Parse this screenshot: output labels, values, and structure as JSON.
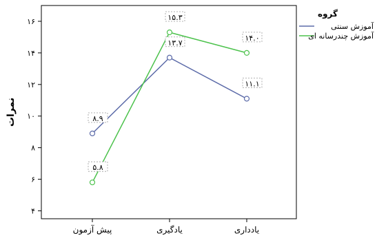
{
  "chart_data": {
    "type": "line",
    "categories": [
      "پیش آزمون",
      "یادگیری",
      "یادداری"
    ],
    "series": [
      {
        "name": "آموزش سنتی",
        "color": "#5b6aa8",
        "values": [
          8.9,
          13.7,
          11.1
        ],
        "labels": [
          "۸.۹",
          "۱۳.۷",
          "۱۱.۱"
        ]
      },
      {
        "name": "آموزش چندرسانه ای",
        "color": "#4cc24c",
        "values": [
          5.8,
          15.3,
          14.0
        ],
        "labels": [
          "۵.۸",
          "۱۵.۳",
          "۱۴.۰"
        ]
      }
    ],
    "ylabel": "نمرات",
    "ylim": [
      3.5,
      17
    ],
    "yticks": [
      4,
      6,
      8,
      10,
      12,
      14,
      16
    ],
    "ytick_labels": [
      "۴",
      "۶",
      "۸",
      "۱۰",
      "۱۲",
      "۱۴",
      "۱۶"
    ],
    "legend": {
      "title": "گروه",
      "position": "top-right"
    },
    "grid": false
  }
}
